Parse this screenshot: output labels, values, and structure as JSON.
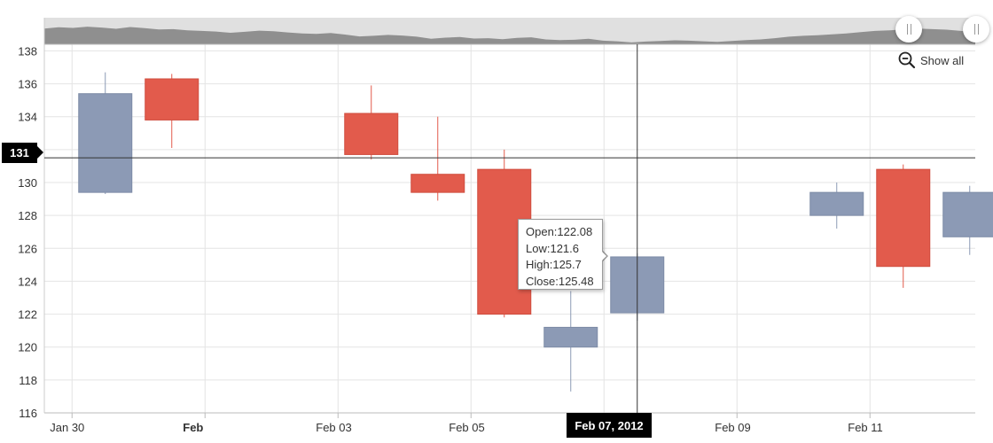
{
  "toolbar": {
    "show_all_label": "Show all",
    "zoom_icon": "zoom-out-icon"
  },
  "colors": {
    "rising": "#8c9ab5",
    "falling": "#e25b4c",
    "navigator_fill": "#8f8f8f",
    "navigator_bg": "#e0e0e0",
    "crosshair": "#333333",
    "badge": "#000000"
  },
  "crosshair": {
    "x_label": "Feb 07, 2012",
    "y_label": "131",
    "x_value": "2012-02-07",
    "y_value": 131.5
  },
  "tooltip": {
    "open_text": "Open:122.08",
    "low_text": "Low:121.6",
    "high_text": "High:125.7",
    "close_text": "Close:125.48"
  },
  "navigator": {
    "range_start": "2012-01-30",
    "range_end": "2012-02-12",
    "profile": [
      134.2,
      134.6,
      134.4,
      134.8,
      134.5,
      134.1,
      134.7,
      134.3,
      133.9,
      134.0,
      133.6,
      133.4,
      133.2,
      132.8,
      133.1,
      133.5,
      133.3,
      132.9,
      132.6,
      132.4,
      132.7,
      132.2,
      131.6,
      131.8,
      132.1,
      131.9,
      131.5,
      130.8,
      131.2,
      131.4,
      130.9,
      131.0,
      130.7,
      131.1,
      131.3,
      130.6,
      130.4,
      130.5,
      130.8,
      130.2,
      130.0,
      129.6,
      129.9,
      130.1,
      130.3,
      130.2,
      130.0,
      129.8,
      130.1,
      130.4,
      130.6,
      131.0,
      131.5,
      131.8,
      132.0,
      132.3,
      132.6,
      133.0,
      133.4,
      133.6,
      133.9,
      134.2,
      134.0,
      133.8,
      133.4,
      133.0
    ]
  },
  "chart_data": {
    "type": "candlestick",
    "title": "",
    "xlabel": "",
    "ylabel": "",
    "ylim": [
      116,
      138.4
    ],
    "xlim": [
      "2012-01-29T14:00",
      "2012-02-12T14:00"
    ],
    "y_ticks": [
      116,
      118,
      120,
      122,
      124,
      126,
      128,
      130,
      132,
      134,
      136,
      138
    ],
    "x_ticks": [
      {
        "date": "2012-01-30",
        "label": "Jan 30",
        "major": false
      },
      {
        "date": "2012-02-01",
        "label": "Feb",
        "major": true
      },
      {
        "date": "2012-02-03",
        "label": "Feb 03",
        "major": false
      },
      {
        "date": "2012-02-05",
        "label": "Feb 05",
        "major": false
      },
      {
        "date": "2012-02-07",
        "label": "Feb 07",
        "major": false
      },
      {
        "date": "2012-02-09",
        "label": "Feb 09",
        "major": false
      },
      {
        "date": "2012-02-11",
        "label": "Feb 11",
        "major": false
      }
    ],
    "grid": true,
    "series": [
      {
        "date": "2012-01-30",
        "open": 129.4,
        "high": 136.7,
        "low": 129.3,
        "close": 135.4
      },
      {
        "date": "2012-01-31",
        "open": 136.3,
        "high": 136.6,
        "low": 132.1,
        "close": 133.8
      },
      {
        "date": "2012-02-03",
        "open": 134.2,
        "high": 135.9,
        "low": 131.4,
        "close": 131.7
      },
      {
        "date": "2012-02-04",
        "open": 130.5,
        "high": 134.0,
        "low": 128.9,
        "close": 129.4
      },
      {
        "date": "2012-02-05",
        "open": 130.8,
        "high": 132.0,
        "low": 121.8,
        "close": 122.0
      },
      {
        "date": "2012-02-06",
        "open": 120.0,
        "high": 123.4,
        "low": 117.3,
        "close": 121.2
      },
      {
        "date": "2012-02-07",
        "open": 122.08,
        "high": 125.7,
        "low": 121.6,
        "close": 125.48
      },
      {
        "date": "2012-02-10",
        "open": 128.0,
        "high": 130.0,
        "low": 127.2,
        "close": 129.4
      },
      {
        "date": "2012-02-11",
        "open": 130.8,
        "high": 131.1,
        "low": 123.6,
        "close": 124.9
      },
      {
        "date": "2012-02-12",
        "open": 126.7,
        "high": 129.8,
        "low": 125.6,
        "close": 129.4
      }
    ]
  }
}
